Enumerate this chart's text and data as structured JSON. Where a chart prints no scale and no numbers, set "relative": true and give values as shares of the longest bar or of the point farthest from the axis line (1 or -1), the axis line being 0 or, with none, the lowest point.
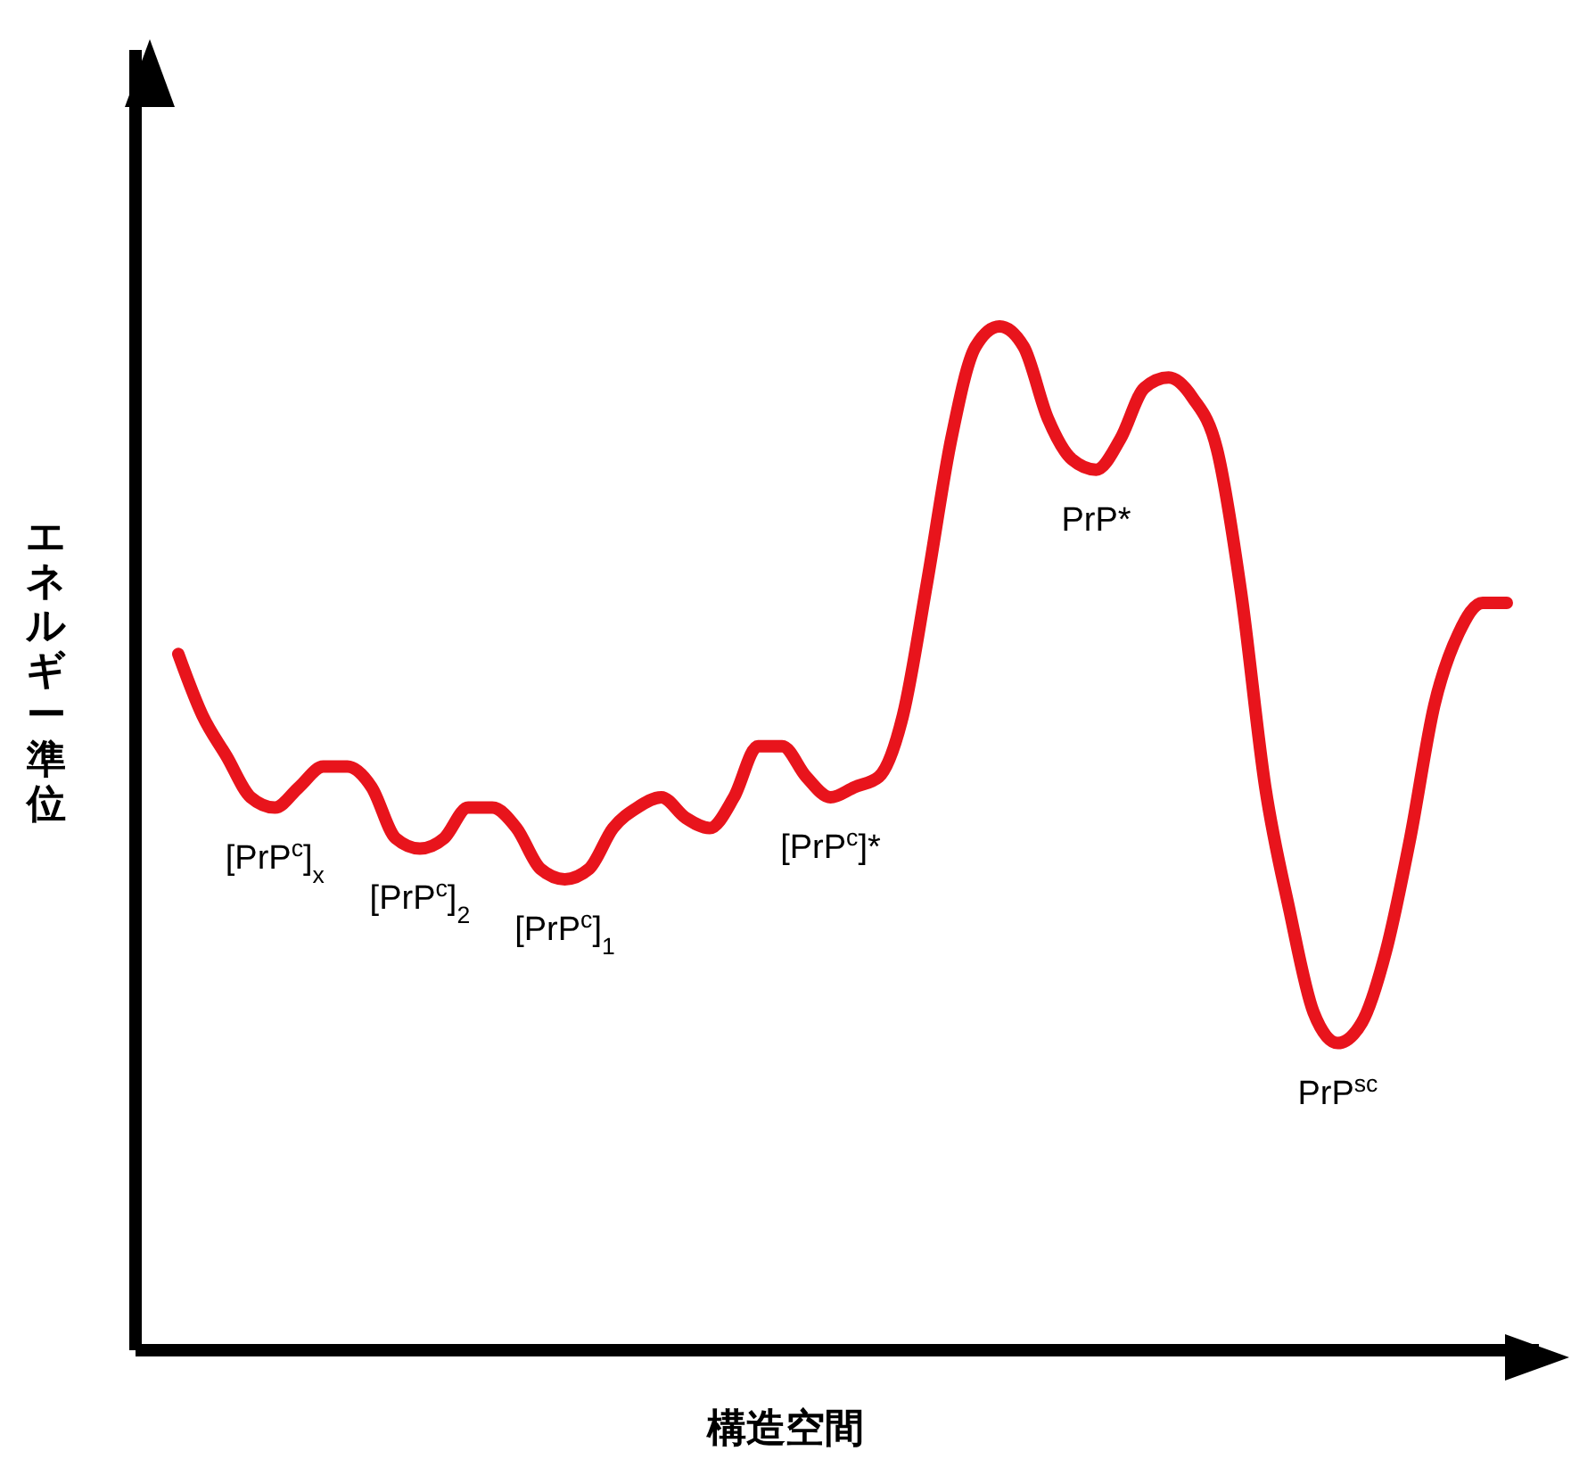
{
  "chart_data": {
    "type": "line",
    "relative": true,
    "xlabel": "構造空間",
    "ylabel": "エネルギー準位",
    "categories": [
      null,
      null,
      null,
      null,
      null,
      null,
      null,
      null,
      null,
      null,
      null,
      null,
      null,
      null,
      null,
      null,
      null,
      null,
      null,
      null,
      null,
      null,
      null,
      null,
      null,
      null,
      null,
      null,
      null,
      null,
      null,
      null,
      null,
      null,
      null,
      null,
      null,
      null,
      null,
      null,
      null,
      null,
      null,
      null,
      null,
      null,
      null,
      null,
      null,
      null,
      null,
      null,
      null,
      null,
      null,
      null
    ],
    "series": [
      {
        "color": "#e8141c",
        "values": [
          0.68,
          0.62,
          0.58,
          0.54,
          0.53,
          0.55,
          0.57,
          0.57,
          0.55,
          0.5,
          0.49,
          0.5,
          0.53,
          0.53,
          0.51,
          0.47,
          0.46,
          0.47,
          0.51,
          0.53,
          0.54,
          0.52,
          0.51,
          0.54,
          0.59,
          0.59,
          0.56,
          0.54,
          0.55,
          0.56,
          0.62,
          0.75,
          0.89,
          0.98,
          1,
          0.98,
          0.91,
          0.87,
          0.86,
          0.89,
          0.94,
          0.95,
          0.93,
          0.88,
          0.74,
          0.55,
          0.43,
          0.33,
          0.3,
          0.32,
          0.39,
          0.5,
          0.63,
          0.7,
          0.73,
          0.73
        ]
      }
    ],
    "annotations": [
      {
        "text": "[PrP$^{c}$]$_{x}$",
        "y": 0.53
      },
      {
        "text": "[PrP$^{c}$]$_{2}$",
        "y": 0.49
      },
      {
        "text": "[PrP$^{c}$]$_{1}$",
        "y": 0.46
      },
      {
        "text": "[PrP$^{c}$]*",
        "y": 0.54
      },
      {
        "text": "PrP*",
        "y": 0.86
      },
      {
        "text": "PrP$^{sc}$",
        "y": 0.3
      }
    ],
    "grid": false,
    "legend": false,
    "marker": "none",
    "line_style": "solid"
  }
}
